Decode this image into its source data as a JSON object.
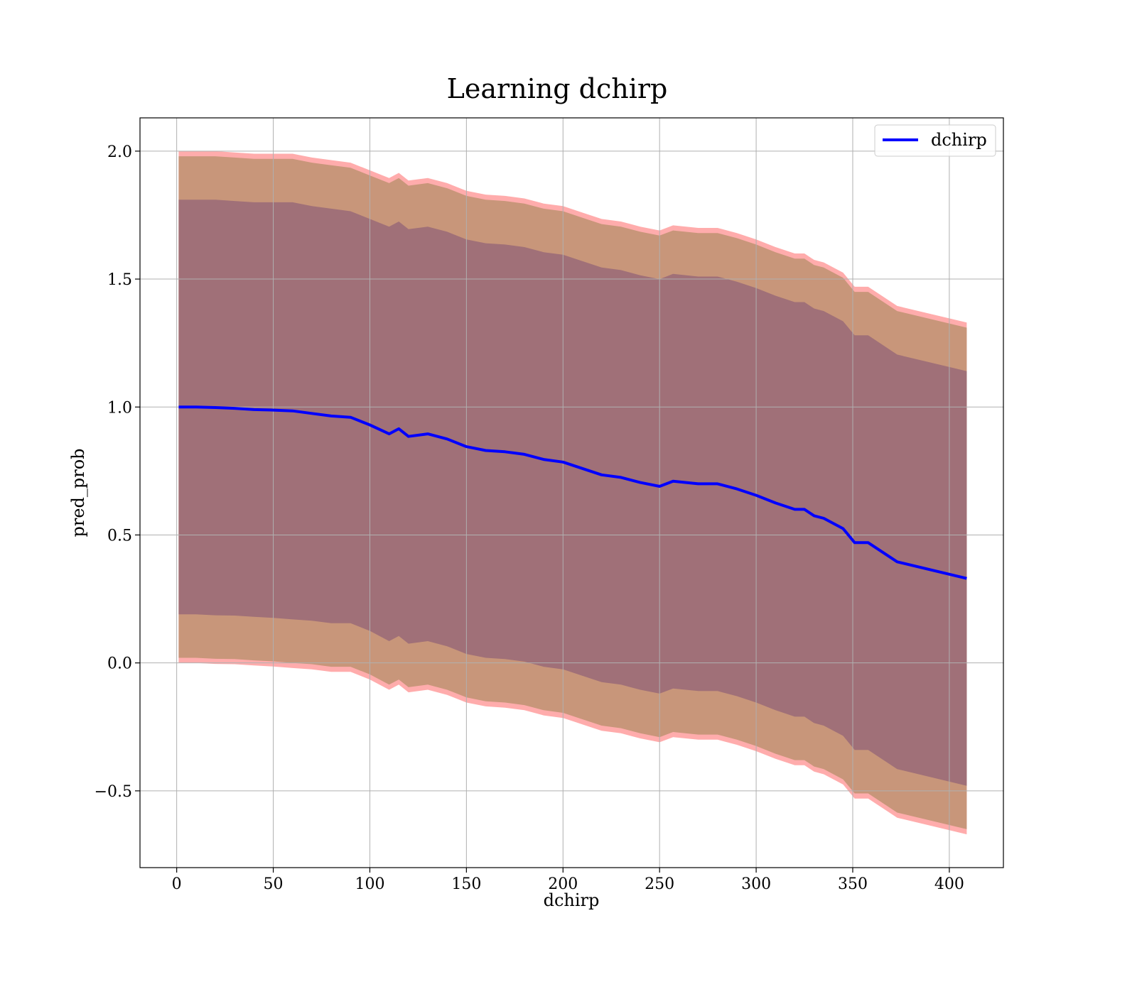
{
  "chart_data": {
    "type": "line",
    "title": "Learning dchirp",
    "xlabel": "dchirp",
    "ylabel": "pred_prob",
    "xlim": [
      -19,
      428
    ],
    "ylim": [
      -0.8,
      2.13
    ],
    "xticks": [
      0,
      50,
      100,
      150,
      200,
      250,
      300,
      350,
      400
    ],
    "yticks": [
      -0.5,
      0.0,
      0.5,
      1.0,
      1.5,
      2.0
    ],
    "ytick_labels": [
      "−0.5",
      "0.0",
      "0.5",
      "1.0",
      "1.5",
      "2.0"
    ],
    "grid": true,
    "legend": {
      "placement": "upper right",
      "entries": [
        "dchirp"
      ]
    },
    "colors": {
      "line": "#0000ff",
      "outer_band": "#ff7f7f",
      "middle_band": "#c8967a",
      "inner_band": "#a07078",
      "grid": "#b0b0b0"
    },
    "series": [
      {
        "name": "dchirp",
        "x": [
          1,
          10,
          20,
          30,
          40,
          50,
          60,
          70,
          80,
          90,
          100,
          110,
          115,
          120,
          130,
          140,
          150,
          160,
          170,
          180,
          190,
          200,
          210,
          220,
          230,
          240,
          250,
          257,
          270,
          280,
          290,
          300,
          310,
          320,
          325,
          330,
          335,
          345,
          351,
          358,
          373,
          409
        ],
        "mean": [
          1.0,
          1.0,
          0.998,
          0.995,
          0.99,
          0.988,
          0.985,
          0.975,
          0.965,
          0.96,
          0.93,
          0.895,
          0.915,
          0.885,
          0.895,
          0.875,
          0.845,
          0.83,
          0.825,
          0.815,
          0.795,
          0.785,
          0.76,
          0.735,
          0.725,
          0.705,
          0.69,
          0.71,
          0.7,
          0.7,
          0.68,
          0.655,
          0.625,
          0.6,
          0.6,
          0.575,
          0.565,
          0.525,
          0.47,
          0.47,
          0.395,
          0.33
        ],
        "inner_upper": [
          1.81,
          1.81,
          1.81,
          1.805,
          1.8,
          1.8,
          1.8,
          1.785,
          1.775,
          1.765,
          1.735,
          1.705,
          1.725,
          1.695,
          1.705,
          1.685,
          1.655,
          1.64,
          1.635,
          1.625,
          1.605,
          1.595,
          1.57,
          1.545,
          1.535,
          1.515,
          1.5,
          1.52,
          1.51,
          1.51,
          1.49,
          1.465,
          1.435,
          1.41,
          1.41,
          1.385,
          1.375,
          1.335,
          1.28,
          1.28,
          1.205,
          1.14
        ],
        "inner_lower": [
          0.19,
          0.19,
          0.186,
          0.185,
          0.18,
          0.176,
          0.17,
          0.165,
          0.155,
          0.155,
          0.125,
          0.085,
          0.105,
          0.075,
          0.085,
          0.065,
          0.035,
          0.02,
          0.015,
          0.005,
          -0.015,
          -0.025,
          -0.05,
          -0.075,
          -0.085,
          -0.105,
          -0.12,
          -0.1,
          -0.11,
          -0.11,
          -0.13,
          -0.155,
          -0.185,
          -0.21,
          -0.21,
          -0.235,
          -0.245,
          -0.285,
          -0.34,
          -0.34,
          -0.415,
          -0.48
        ],
        "outer_upper": [
          1.98,
          1.98,
          1.98,
          1.975,
          1.97,
          1.97,
          1.97,
          1.955,
          1.945,
          1.935,
          1.905,
          1.875,
          1.895,
          1.865,
          1.875,
          1.855,
          1.825,
          1.81,
          1.805,
          1.795,
          1.775,
          1.765,
          1.74,
          1.715,
          1.705,
          1.685,
          1.67,
          1.69,
          1.68,
          1.68,
          1.66,
          1.635,
          1.605,
          1.58,
          1.58,
          1.555,
          1.545,
          1.505,
          1.45,
          1.45,
          1.375,
          1.31
        ],
        "outer_lower": [
          0.02,
          0.02,
          0.016,
          0.015,
          0.01,
          0.006,
          0.0,
          -0.005,
          -0.015,
          -0.015,
          -0.045,
          -0.085,
          -0.065,
          -0.095,
          -0.085,
          -0.105,
          -0.135,
          -0.15,
          -0.155,
          -0.165,
          -0.185,
          -0.195,
          -0.22,
          -0.245,
          -0.255,
          -0.275,
          -0.29,
          -0.27,
          -0.28,
          -0.28,
          -0.3,
          -0.325,
          -0.355,
          -0.38,
          -0.38,
          -0.405,
          -0.415,
          -0.455,
          -0.51,
          -0.51,
          -0.585,
          -0.65
        ]
      }
    ]
  }
}
